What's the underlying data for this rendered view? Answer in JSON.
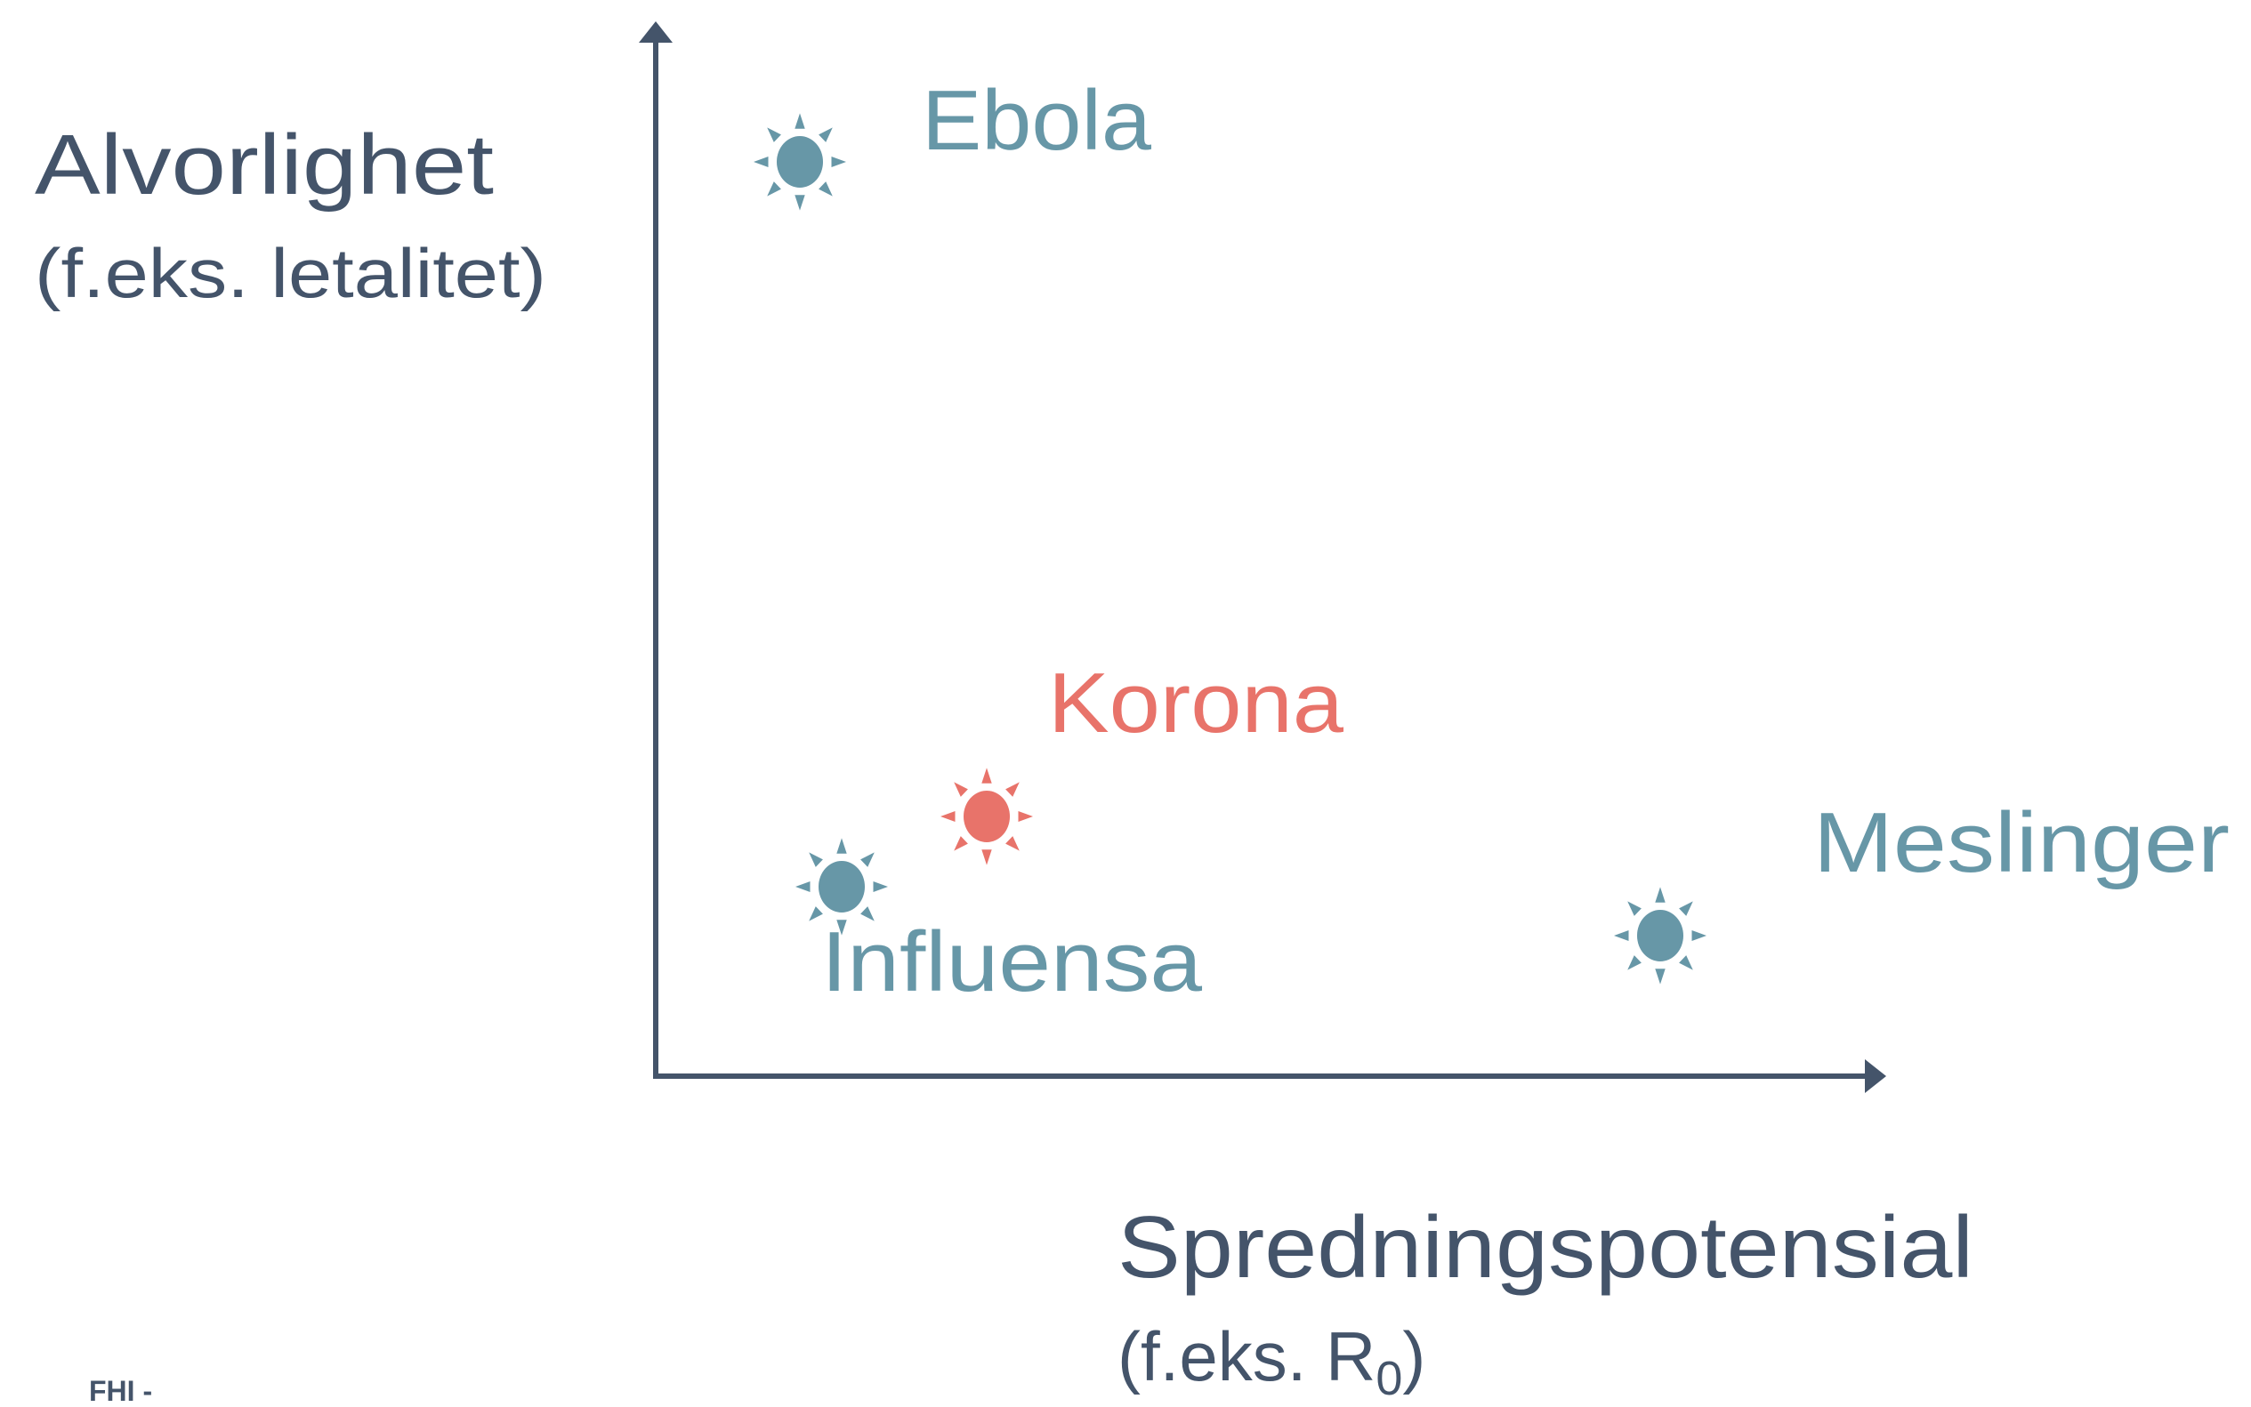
{
  "y_axis": {
    "title": "Alvorlighet",
    "subtitle": "(f.eks. letalitet)"
  },
  "x_axis": {
    "title": "Spredningspotensial",
    "subtitle": {
      "prefix": "(f.eks. R",
      "subscript": "0",
      "suffix": ")"
    }
  },
  "nodes": [
    {
      "label": "Ebola",
      "color": "#6797a7"
    },
    {
      "label": "Korona",
      "color": "#e8736a"
    },
    {
      "label": "Influensa",
      "color": "#6797a7"
    },
    {
      "label": "Meslinger",
      "color": "#6797a7"
    }
  ],
  "footer": "FHI -"
}
